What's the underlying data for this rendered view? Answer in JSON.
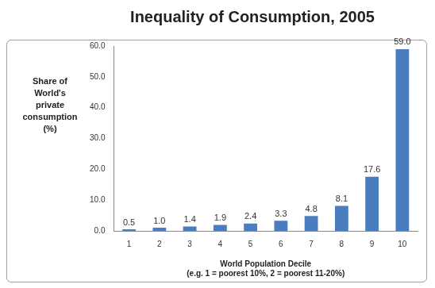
{
  "chart_data": {
    "type": "bar",
    "title": "Inequality of Consumption, 2005",
    "y_label": [
      "Share of",
      "World's",
      "private",
      "consumption",
      "(%)"
    ],
    "x_label": [
      "World Population Decile",
      "(e.g. 1 = poorest 10%, 2 = poorest 11-20%)"
    ],
    "categories": [
      "1",
      "2",
      "3",
      "4",
      "5",
      "6",
      "7",
      "8",
      "9",
      "10"
    ],
    "values": [
      0.5,
      1.0,
      1.4,
      1.9,
      2.4,
      3.3,
      4.8,
      8.1,
      17.6,
      59.0
    ],
    "value_labels": [
      "0.5",
      "1.0",
      "1.4",
      "1.9",
      "2.4",
      "3.3",
      "4.8",
      "8.1",
      "17.6",
      "59.0"
    ],
    "color": "#4a7dbf",
    "ylim": [
      0,
      60
    ],
    "yticks": [
      {
        "value": 0,
        "label": "0.0"
      },
      {
        "value": 10,
        "label": "10.0"
      },
      {
        "value": 20,
        "label": "20.0"
      },
      {
        "value": 30,
        "label": "30.0"
      },
      {
        "value": 40,
        "label": "40.0"
      },
      {
        "value": 50,
        "label": "50.0"
      },
      {
        "value": 60,
        "label": "60.0"
      }
    ],
    "grid": false,
    "data_labels": true
  }
}
